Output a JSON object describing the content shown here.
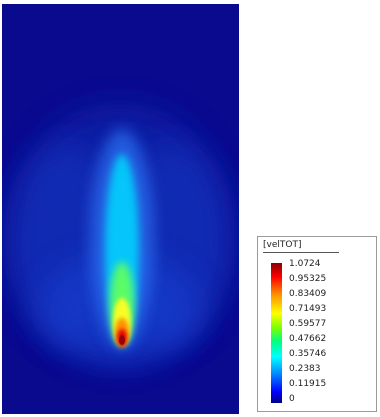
{
  "legend": {
    "title": "[velTOT]",
    "ticks": [
      "1.0724",
      "0.95325",
      "0.83409",
      "0.71493",
      "0.59577",
      "0.47662",
      "0.35746",
      "0.2383",
      "0.11915",
      "0"
    ]
  },
  "field": {
    "max_value": 1.0724,
    "min_value": 0,
    "background_color": "#0a0a8f",
    "peak_color": "#a00000"
  }
}
